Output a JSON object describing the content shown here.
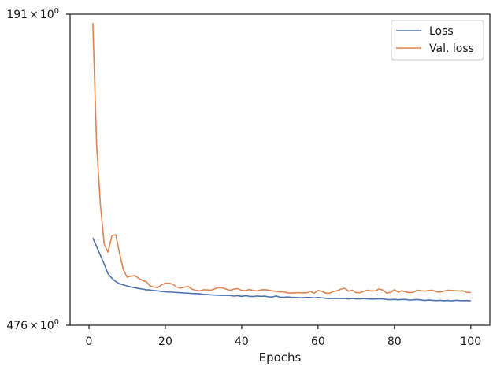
{
  "chart_data": {
    "type": "line",
    "xlabel": "Epochs",
    "ylabel": "",
    "xlim": [
      -4.95,
      105
    ],
    "ylim": [
      476,
      191
    ],
    "x_ticks": [
      0,
      20,
      40,
      60,
      80,
      100
    ],
    "y_ticks": [
      {
        "value": 191,
        "mantissa": "191",
        "times": "×",
        "base": "10",
        "exp": "0"
      },
      {
        "value": 476,
        "mantissa": "476",
        "times": "×",
        "base": "10",
        "exp": "0"
      }
    ],
    "legend_position": "top-right",
    "series": [
      {
        "name": "Loss",
        "color": "#4c72b0",
        "x": [
          1,
          2,
          3,
          4,
          5,
          6,
          7,
          8,
          9,
          10,
          11,
          12,
          13,
          14,
          15,
          16,
          17,
          18,
          19,
          20,
          21,
          22,
          23,
          24,
          25,
          26,
          27,
          28,
          29,
          30,
          31,
          32,
          33,
          34,
          35,
          36,
          37,
          38,
          39,
          40,
          41,
          42,
          43,
          44,
          45,
          46,
          47,
          48,
          49,
          50,
          51,
          52,
          53,
          54,
          55,
          56,
          57,
          58,
          59,
          60,
          61,
          62,
          63,
          64,
          65,
          66,
          67,
          68,
          69,
          70,
          71,
          72,
          73,
          74,
          75,
          76,
          77,
          78,
          79,
          80,
          81,
          82,
          83,
          84,
          85,
          86,
          87,
          88,
          89,
          90,
          91,
          92,
          93,
          94,
          95,
          96,
          97,
          98,
          99,
          100
        ],
        "y": [
          396,
          404,
          412,
          420,
          429,
          433,
          436,
          438,
          439,
          440,
          441,
          441.6,
          442.3,
          442.9,
          443.5,
          443.7,
          444.2,
          444.5,
          445,
          445.3,
          445.6,
          445.7,
          446,
          446.2,
          446.5,
          446.6,
          446.9,
          447,
          447.2,
          447.7,
          447.9,
          448.2,
          448.4,
          448.5,
          448.6,
          448.6,
          448.8,
          449.3,
          448.9,
          449.6,
          448.9,
          449.5,
          449.7,
          449.2,
          449.5,
          449.4,
          450,
          450.1,
          449.2,
          450.2,
          450.4,
          450.1,
          450.5,
          450.5,
          450.8,
          450.9,
          450.5,
          450.6,
          451,
          450.6,
          450.9,
          451.3,
          451.6,
          451.3,
          451.5,
          451.5,
          451.5,
          451.9,
          451.5,
          451.9,
          451.9,
          451.6,
          451.9,
          452.1,
          452,
          451.9,
          451.9,
          452.4,
          452.6,
          452.3,
          452.7,
          452.4,
          452.4,
          453,
          452.7,
          452.5,
          452.9,
          453.3,
          452.9,
          453.2,
          453.5,
          453.2,
          453.6,
          453.3,
          453.7,
          453.2,
          453.4,
          453.5,
          453.4,
          453.7
        ]
      },
      {
        "name": "Val. loss",
        "color": "#dd8452",
        "x": [
          1,
          2,
          3,
          4,
          5,
          6,
          7,
          8,
          9,
          10,
          11,
          12,
          13,
          14,
          15,
          16,
          17,
          18,
          19,
          20,
          21,
          22,
          23,
          24,
          25,
          26,
          27,
          28,
          29,
          30,
          31,
          32,
          33,
          34,
          35,
          36,
          37,
          38,
          39,
          40,
          41,
          42,
          43,
          44,
          45,
          46,
          47,
          48,
          49,
          50,
          51,
          52,
          53,
          54,
          55,
          56,
          57,
          58,
          59,
          60,
          61,
          62,
          63,
          64,
          65,
          66,
          67,
          68,
          69,
          70,
          71,
          72,
          73,
          74,
          75,
          76,
          77,
          78,
          79,
          80,
          81,
          82,
          83,
          84,
          85,
          86,
          87,
          88,
          89,
          90,
          91,
          92,
          93,
          94,
          95,
          96,
          97,
          98,
          99,
          100
        ],
        "y": [
          199,
          311,
          366,
          402,
          409,
          394,
          393,
          410,
          425,
          432,
          431,
          430.5,
          433,
          435,
          436,
          440,
          441,
          441.5,
          439,
          437.5,
          437.5,
          438.5,
          441,
          442,
          441,
          440.5,
          443,
          444,
          444.5,
          443.5,
          443.7,
          443.9,
          442.5,
          441.5,
          441.7,
          443.1,
          443.9,
          442.9,
          442.4,
          444.1,
          444.3,
          443.3,
          444.1,
          444.6,
          443.7,
          443.4,
          443.8,
          444.5,
          444.9,
          445.5,
          445.3,
          446.3,
          446.5,
          446.3,
          446.1,
          446.4,
          446.3,
          445.1,
          446.6,
          444.1,
          444.9,
          446.6,
          446.6,
          445.1,
          444.4,
          442.9,
          442.1,
          444.8,
          443.9,
          446.1,
          446.1,
          444.9,
          443.9,
          444.6,
          444.5,
          442.8,
          443.7,
          446.6,
          445.9,
          443.5,
          445.6,
          444.4,
          445.5,
          446.1,
          445.7,
          443.9,
          444.4,
          444.7,
          444.2,
          443.9,
          445.3,
          445.7,
          444.7,
          443.9,
          444.1,
          444.4,
          444.6,
          444.5,
          445.8,
          446
        ]
      }
    ]
  }
}
